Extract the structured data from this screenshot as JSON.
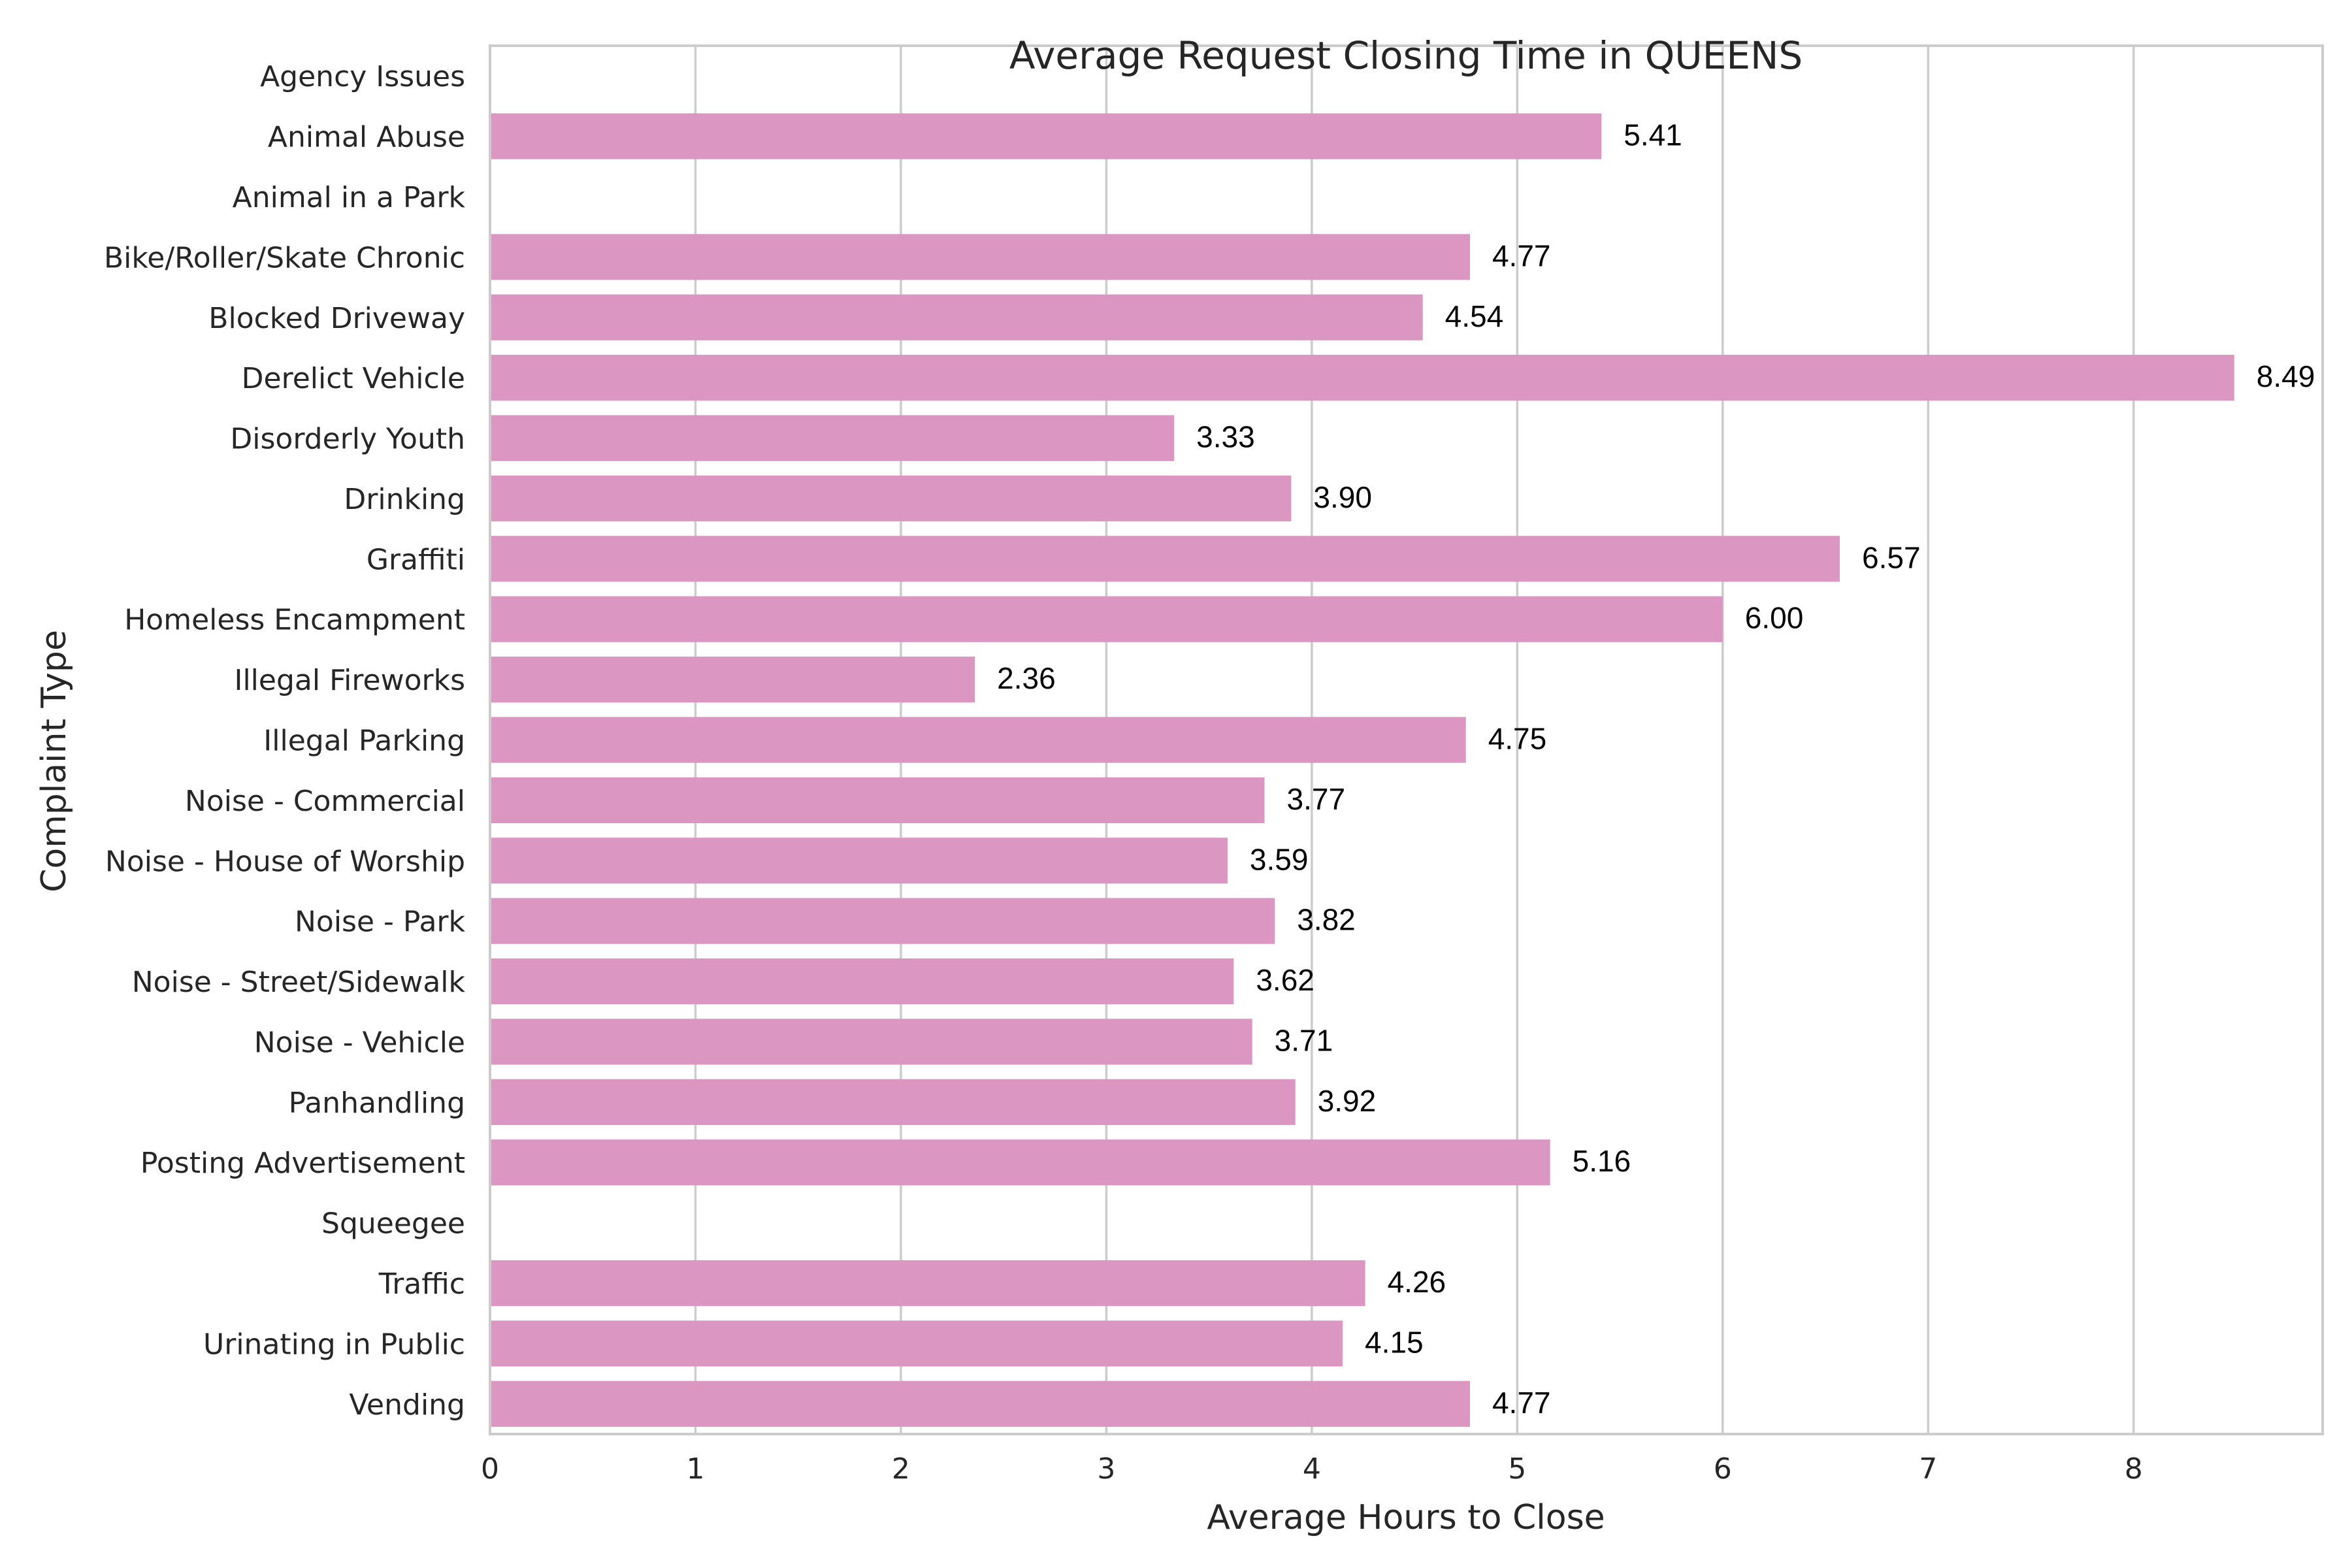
{
  "chart_data": {
    "type": "bar",
    "orientation": "horizontal",
    "title": "Average Request Closing Time in QUEENS",
    "xlabel": "Average Hours to Close",
    "ylabel": "Complaint Type",
    "xlim": [
      0,
      8.92
    ],
    "xticks": [
      "0",
      "1",
      "2",
      "3",
      "4",
      "5",
      "6",
      "7",
      "8"
    ],
    "grid": true,
    "bar_color": "#dc96c2",
    "categories": [
      "Agency Issues",
      "Animal Abuse",
      "Animal in a Park",
      "Bike/Roller/Skate Chronic",
      "Blocked Driveway",
      "Derelict Vehicle",
      "Disorderly Youth",
      "Drinking",
      "Graffiti",
      "Homeless Encampment",
      "Illegal Fireworks",
      "Illegal Parking",
      "Noise - Commercial",
      "Noise - House of Worship",
      "Noise - Park",
      "Noise - Street/Sidewalk",
      "Noise - Vehicle",
      "Panhandling",
      "Posting Advertisement",
      "Squeegee",
      "Traffic",
      "Urinating in Public",
      "Vending"
    ],
    "values": [
      null,
      5.41,
      null,
      4.77,
      4.54,
      8.49,
      3.33,
      3.9,
      6.57,
      6.0,
      2.36,
      4.75,
      3.77,
      3.59,
      3.82,
      3.62,
      3.71,
      3.92,
      5.16,
      null,
      4.26,
      4.15,
      4.77
    ],
    "data_labels": [
      "",
      "5.41",
      "",
      "4.77",
      "4.54",
      "8.49",
      "3.33",
      "3.90",
      "6.57",
      "6.00",
      "2.36",
      "4.75",
      "3.77",
      "3.59",
      "3.82",
      "3.62",
      "3.71",
      "3.92",
      "5.16",
      "",
      "4.26",
      "4.15",
      "4.77"
    ]
  }
}
